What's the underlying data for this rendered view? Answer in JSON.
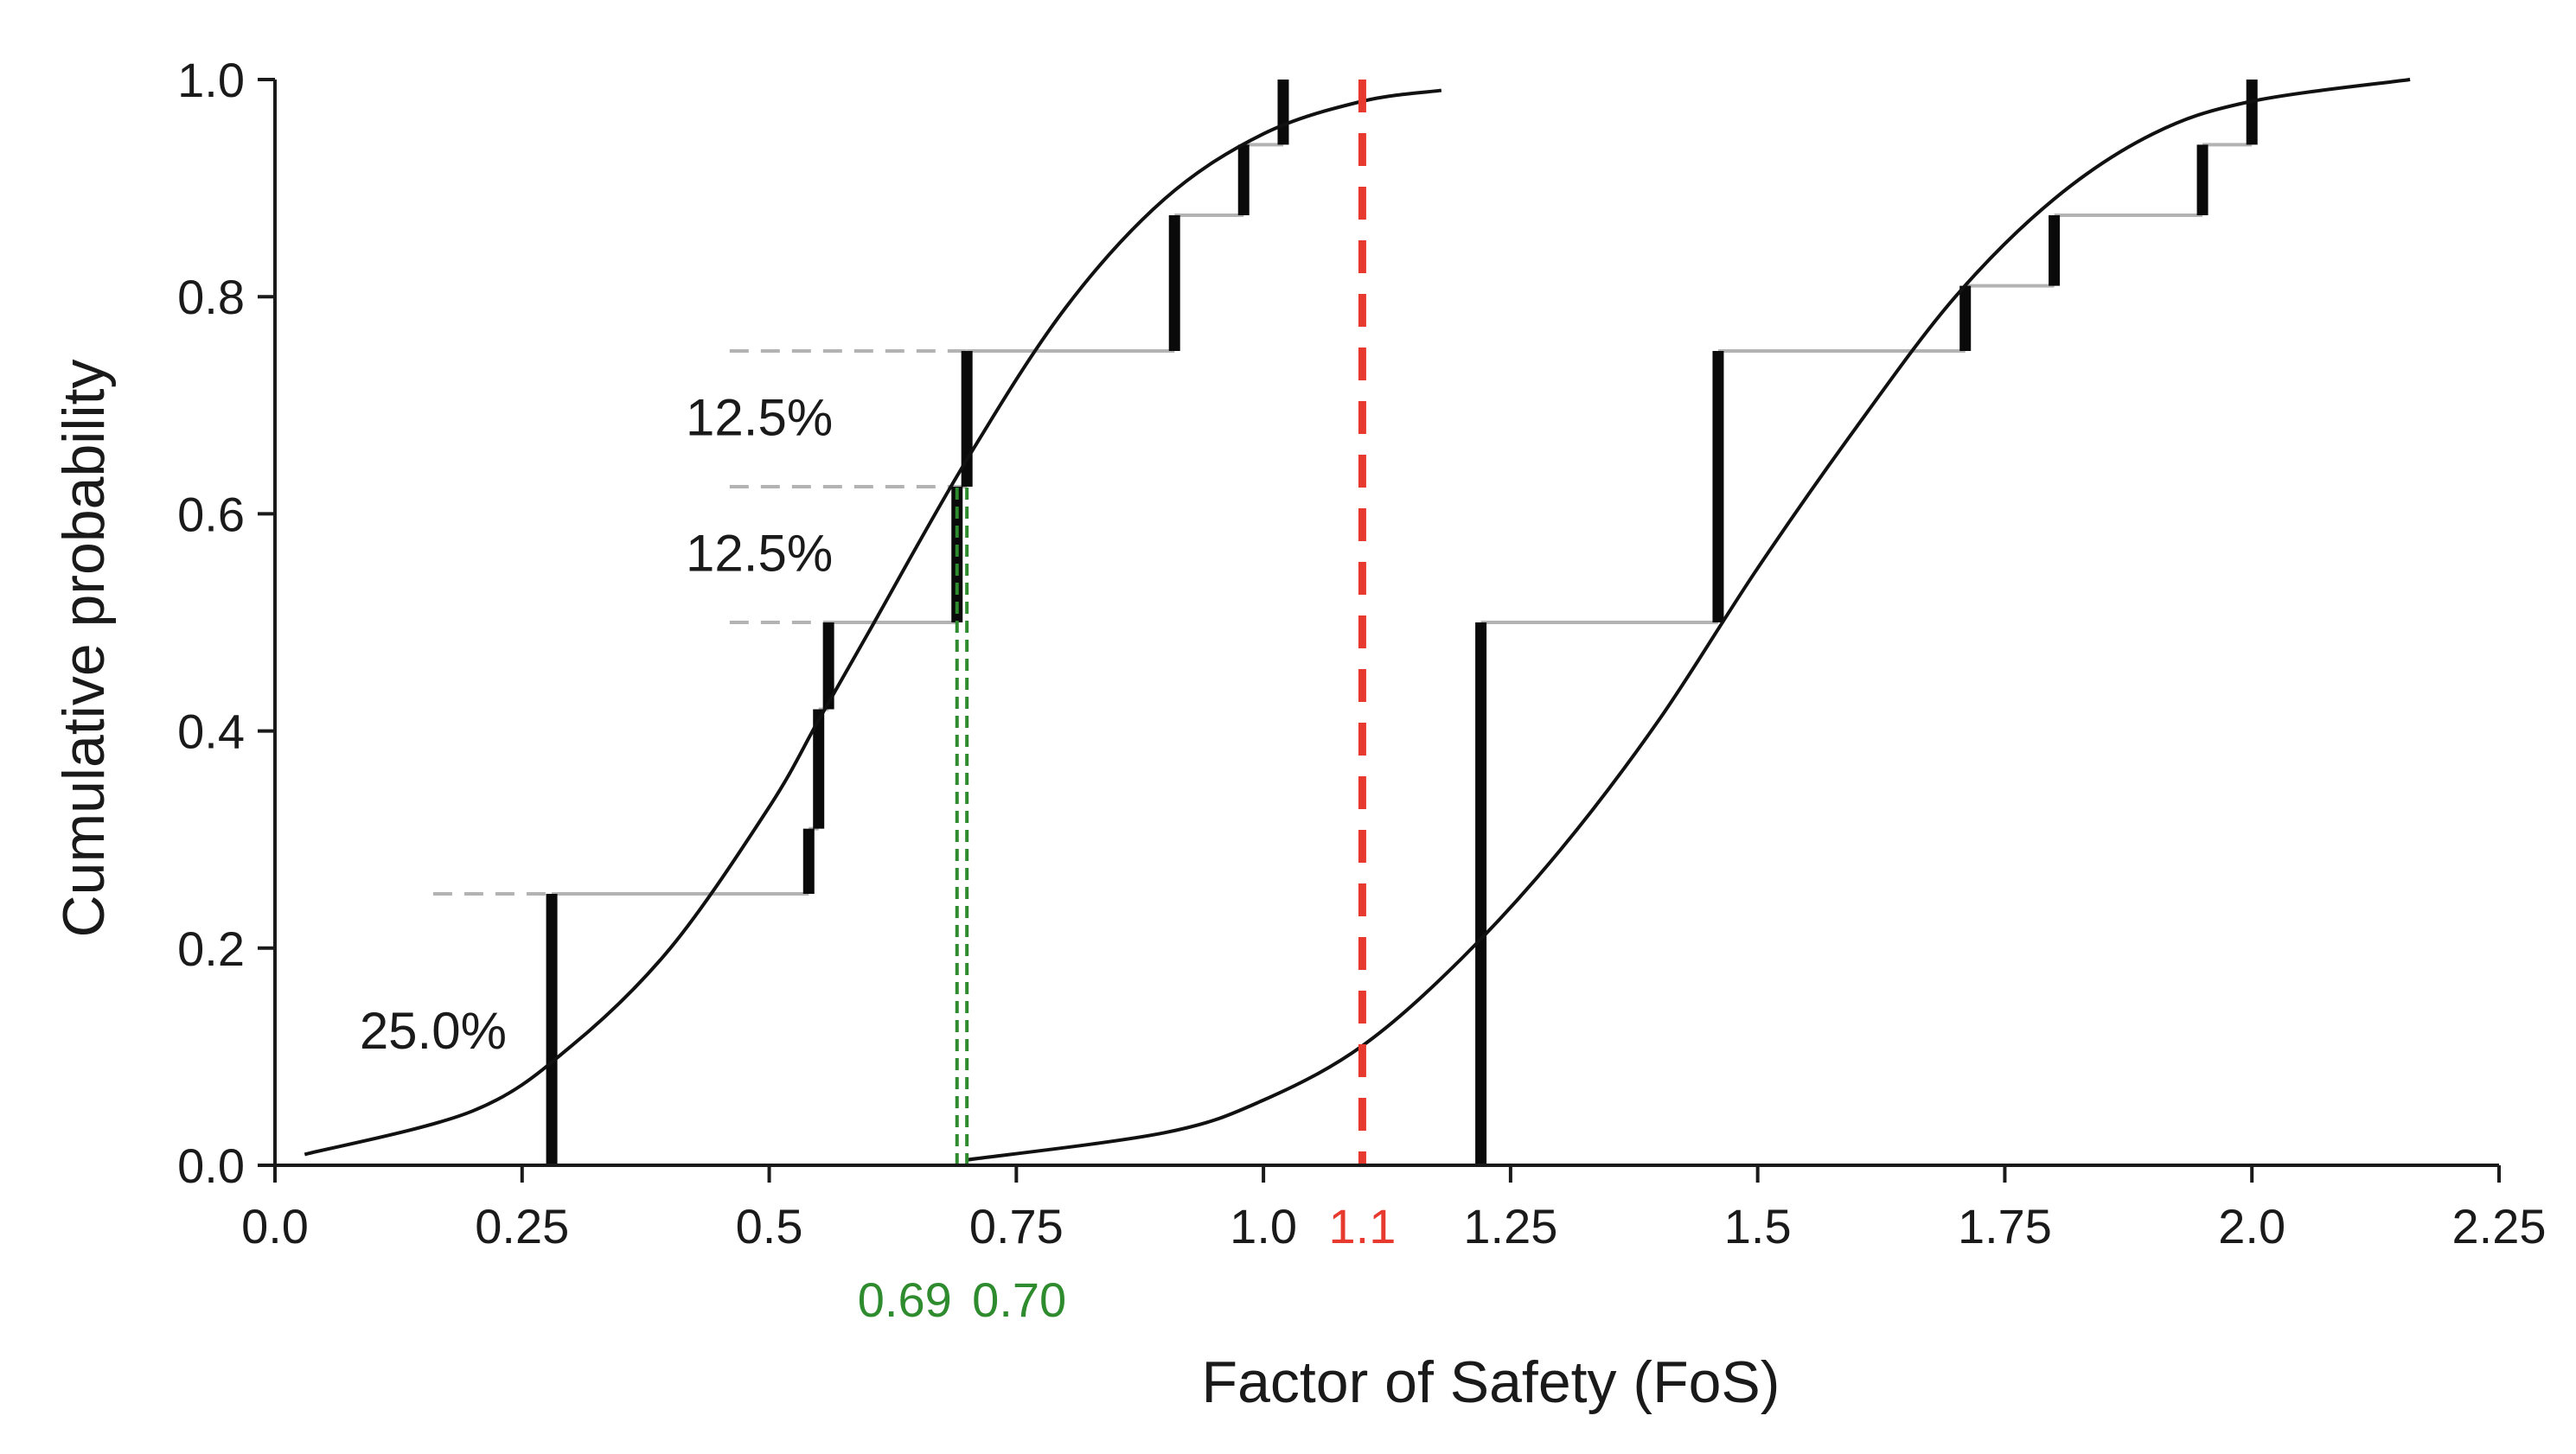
{
  "chart_data": {
    "type": "line",
    "title": "",
    "xlabel": "Factor of Safety (FoS)",
    "ylabel": "Cumulative probability",
    "xlim": [
      0.0,
      2.25
    ],
    "ylim": [
      0.0,
      1.0
    ],
    "x_ticks": [
      0.0,
      0.25,
      0.5,
      0.75,
      1.0,
      1.25,
      1.5,
      1.75,
      2.0,
      2.25
    ],
    "x_tick_labels": [
      "0.0",
      "0.25",
      "0.5",
      "0.75",
      "1.0",
      "1.25",
      "1.5",
      "1.75",
      "2.0",
      "2.25"
    ],
    "y_ticks": [
      0.0,
      0.2,
      0.4,
      0.6,
      0.8,
      1.0
    ],
    "y_tick_labels": [
      "0.0",
      "0.2",
      "0.4",
      "0.6",
      "0.8",
      "1.0"
    ],
    "grid": false,
    "legend": "none",
    "colors": {
      "curve": "#111111",
      "step_vertical": "#0a0a0a",
      "step_horizontal": "#b3b3b3",
      "reference_dash": "#b3b3b3",
      "threshold": "#e8392e",
      "fos_marker": "#2e8b2e"
    },
    "series": [
      {
        "type": "fitted-cdf",
        "x": [
          0.03,
          0.2,
          0.3,
          0.4,
          0.5,
          0.55,
          0.6,
          0.7,
          0.8,
          0.9,
          1.0,
          1.1,
          1.18
        ],
        "y": [
          0.01,
          0.05,
          0.11,
          0.2,
          0.33,
          0.41,
          0.49,
          0.65,
          0.79,
          0.89,
          0.95,
          0.98,
          0.99
        ]
      },
      {
        "type": "empirical-cdf",
        "steps": [
          {
            "x": 0.28,
            "from": 0.0,
            "to": 0.25
          },
          {
            "x": 0.54,
            "from": 0.25,
            "to": 0.31
          },
          {
            "x": 0.55,
            "from": 0.31,
            "to": 0.42
          },
          {
            "x": 0.56,
            "from": 0.42,
            "to": 0.5
          },
          {
            "x": 0.69,
            "from": 0.5,
            "to": 0.625
          },
          {
            "x": 0.7,
            "from": 0.625,
            "to": 0.75
          },
          {
            "x": 0.91,
            "from": 0.75,
            "to": 0.875
          },
          {
            "x": 0.98,
            "from": 0.875,
            "to": 0.94
          },
          {
            "x": 1.02,
            "from": 0.94,
            "to": 1.0
          }
        ]
      },
      {
        "type": "fitted-cdf",
        "x": [
          0.7,
          0.9,
          1.0,
          1.1,
          1.2,
          1.3,
          1.4,
          1.5,
          1.6,
          1.7,
          1.8,
          1.9,
          2.0,
          2.16
        ],
        "y": [
          0.005,
          0.03,
          0.06,
          0.11,
          0.19,
          0.29,
          0.41,
          0.55,
          0.68,
          0.8,
          0.89,
          0.95,
          0.98,
          1.0
        ]
      },
      {
        "type": "empirical-cdf",
        "steps": [
          {
            "x": 1.22,
            "from": 0.0,
            "to": 0.5
          },
          {
            "x": 1.46,
            "from": 0.5,
            "to": 0.75
          },
          {
            "x": 1.71,
            "from": 0.75,
            "to": 0.81
          },
          {
            "x": 1.8,
            "from": 0.81,
            "to": 0.875
          },
          {
            "x": 1.95,
            "from": 0.875,
            "to": 0.94
          },
          {
            "x": 2.0,
            "from": 0.94,
            "to": 1.0
          }
        ]
      }
    ],
    "reference_lines": [
      {
        "y": 0.0,
        "x_from": 0.16,
        "x_to": 0.28
      },
      {
        "y": 0.25,
        "x_from": 0.16,
        "x_to": 0.28
      },
      {
        "y": 0.5,
        "x_from": 0.46,
        "x_to": 0.56
      },
      {
        "y": 0.625,
        "x_from": 0.46,
        "x_to": 0.69
      },
      {
        "y": 0.75,
        "x_from": 0.46,
        "x_to": 0.7
      }
    ],
    "threshold": {
      "x": 1.1,
      "label": "1.1"
    },
    "fos_markers": [
      {
        "x": 0.69,
        "label": "0.69"
      },
      {
        "x": 0.7,
        "label": "0.70"
      }
    ],
    "annotations": [
      {
        "text": "12.5%",
        "x": 0.49,
        "y": 0.69
      },
      {
        "text": "12.5%",
        "x": 0.49,
        "y": 0.565
      },
      {
        "text": "25.0%",
        "x": 0.16,
        "y": 0.125
      }
    ]
  }
}
